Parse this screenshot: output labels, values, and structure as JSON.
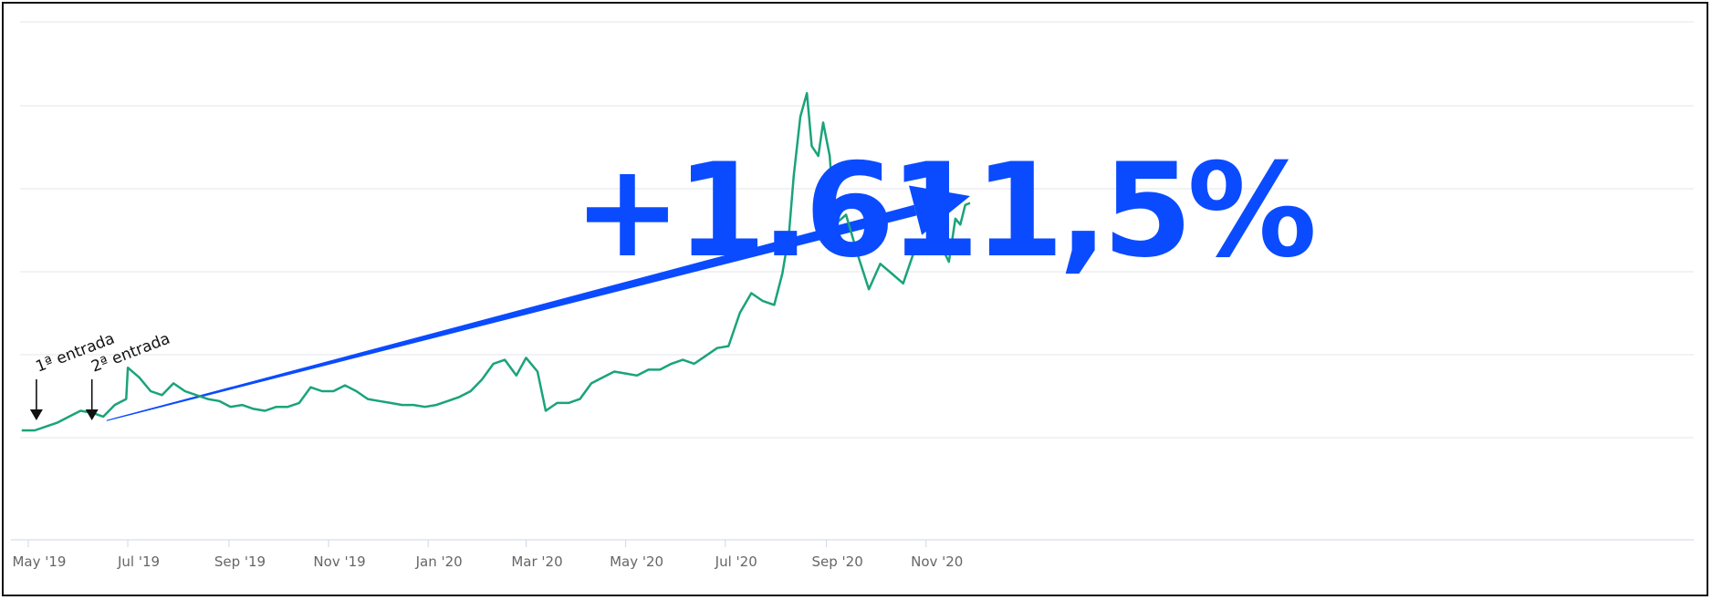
{
  "chart_data": {
    "type": "line",
    "title": "",
    "xlabel": "",
    "ylabel": "",
    "x_ticks": [
      "May '19",
      "Jul '19",
      "Sep '19",
      "Nov '19",
      "Jan '20",
      "Mar '20",
      "May '20",
      "Jul '20",
      "Sep '20",
      "Nov '20"
    ],
    "x_range": [
      "2019-04-26",
      "2020-11-28"
    ],
    "y_axis_labels_visible": false,
    "grid": "horizontal",
    "legend": "none",
    "series": [
      {
        "color": "#1aa37a",
        "points": [
          [
            "2019-04-27",
            0.0
          ],
          [
            "2019-05-05",
            0.0
          ],
          [
            "2019-05-12",
            0.02
          ],
          [
            "2019-05-19",
            0.04
          ],
          [
            "2019-05-26",
            0.07
          ],
          [
            "2019-06-02",
            0.1
          ],
          [
            "2019-06-09",
            0.09
          ],
          [
            "2019-06-16",
            0.07
          ],
          [
            "2019-06-23",
            0.13
          ],
          [
            "2019-06-30",
            0.16
          ],
          [
            "2019-07-01",
            0.32
          ],
          [
            "2019-07-08",
            0.27
          ],
          [
            "2019-07-15",
            0.2
          ],
          [
            "2019-07-22",
            0.18
          ],
          [
            "2019-07-29",
            0.24
          ],
          [
            "2019-08-05",
            0.2
          ],
          [
            "2019-08-12",
            0.18
          ],
          [
            "2019-08-19",
            0.16
          ],
          [
            "2019-08-26",
            0.15
          ],
          [
            "2019-09-02",
            0.12
          ],
          [
            "2019-09-09",
            0.13
          ],
          [
            "2019-09-16",
            0.11
          ],
          [
            "2019-09-23",
            0.1
          ],
          [
            "2019-09-30",
            0.12
          ],
          [
            "2019-10-07",
            0.12
          ],
          [
            "2019-10-14",
            0.14
          ],
          [
            "2019-10-21",
            0.22
          ],
          [
            "2019-10-28",
            0.2
          ],
          [
            "2019-11-04",
            0.2
          ],
          [
            "2019-11-11",
            0.23
          ],
          [
            "2019-11-18",
            0.2
          ],
          [
            "2019-11-25",
            0.16
          ],
          [
            "2019-12-02",
            0.15
          ],
          [
            "2019-12-09",
            0.14
          ],
          [
            "2019-12-16",
            0.13
          ],
          [
            "2019-12-23",
            0.13
          ],
          [
            "2019-12-30",
            0.12
          ],
          [
            "2020-01-06",
            0.13
          ],
          [
            "2020-01-13",
            0.15
          ],
          [
            "2020-01-20",
            0.17
          ],
          [
            "2020-01-27",
            0.2
          ],
          [
            "2020-02-03",
            0.26
          ],
          [
            "2020-02-10",
            0.34
          ],
          [
            "2020-02-17",
            0.36
          ],
          [
            "2020-02-24",
            0.28
          ],
          [
            "2020-03-01",
            0.37
          ],
          [
            "2020-03-08",
            0.3
          ],
          [
            "2020-03-13",
            0.1
          ],
          [
            "2020-03-20",
            0.14
          ],
          [
            "2020-03-27",
            0.14
          ],
          [
            "2020-04-03",
            0.16
          ],
          [
            "2020-04-10",
            0.24
          ],
          [
            "2020-04-17",
            0.27
          ],
          [
            "2020-04-24",
            0.3
          ],
          [
            "2020-05-01",
            0.29
          ],
          [
            "2020-05-08",
            0.28
          ],
          [
            "2020-05-15",
            0.31
          ],
          [
            "2020-05-22",
            0.31
          ],
          [
            "2020-05-29",
            0.34
          ],
          [
            "2020-06-05",
            0.36
          ],
          [
            "2020-06-12",
            0.34
          ],
          [
            "2020-06-19",
            0.38
          ],
          [
            "2020-06-26",
            0.42
          ],
          [
            "2020-07-03",
            0.43
          ],
          [
            "2020-07-10",
            0.6
          ],
          [
            "2020-07-17",
            0.7
          ],
          [
            "2020-07-24",
            0.66
          ],
          [
            "2020-07-31",
            0.64
          ],
          [
            "2020-08-05",
            0.8
          ],
          [
            "2020-08-09",
            1.0
          ],
          [
            "2020-08-12",
            1.3
          ],
          [
            "2020-08-16",
            1.6
          ],
          [
            "2020-08-20",
            1.72
          ],
          [
            "2020-08-23",
            1.45
          ],
          [
            "2020-08-27",
            1.4
          ],
          [
            "2020-08-30",
            1.57
          ],
          [
            "2020-09-03",
            1.4
          ],
          [
            "2020-09-06",
            1.05
          ],
          [
            "2020-09-13",
            1.1
          ],
          [
            "2020-09-20",
            0.9
          ],
          [
            "2020-09-27",
            0.72
          ],
          [
            "2020-10-04",
            0.85
          ],
          [
            "2020-10-11",
            0.8
          ],
          [
            "2020-10-18",
            0.75
          ],
          [
            "2020-10-25",
            0.92
          ],
          [
            "2020-11-01",
            0.92
          ],
          [
            "2020-11-08",
            0.98
          ],
          [
            "2020-11-15",
            0.86
          ],
          [
            "2020-11-19",
            1.08
          ],
          [
            "2020-11-22",
            1.05
          ],
          [
            "2020-11-25",
            1.15
          ],
          [
            "2020-11-28",
            1.16
          ]
        ]
      }
    ],
    "annotations": [
      {
        "text": "1ª entrada",
        "date": "2019-05-06"
      },
      {
        "text": "2ª entrada",
        "date": "2019-06-09"
      }
    ],
    "trend_arrow": {
      "from": [
        "2019-06-18",
        0.05
      ],
      "to": [
        "2020-11-28",
        1.16
      ],
      "color": "#0a4bff"
    },
    "headline": {
      "text": "+1.611,5%",
      "color": "#0a4bff"
    }
  }
}
